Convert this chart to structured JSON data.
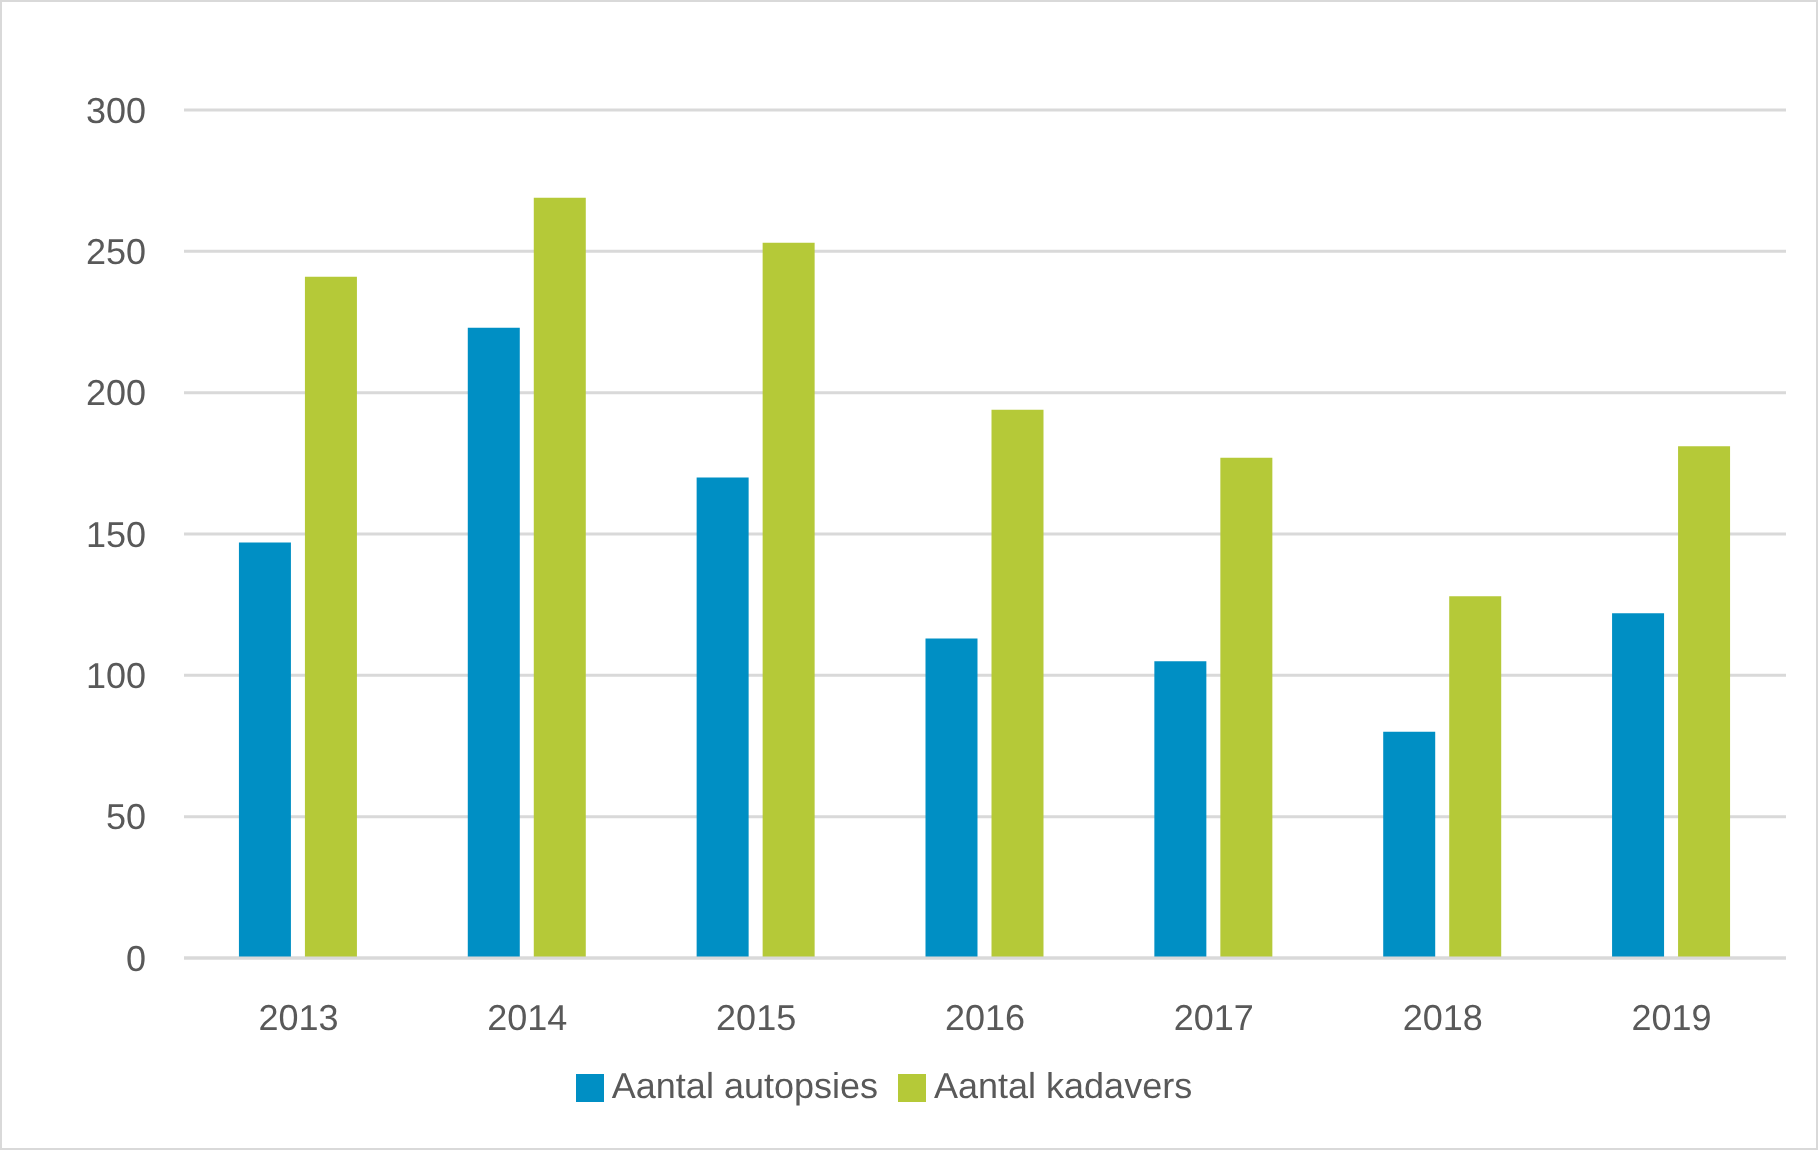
{
  "chart_data": {
    "type": "bar",
    "categories": [
      "2013",
      "2014",
      "2015",
      "2016",
      "2017",
      "2018",
      "2019"
    ],
    "series": [
      {
        "name": "Aantal autopsies",
        "color": "#008fc4",
        "values": [
          147,
          223,
          170,
          113,
          105,
          80,
          122
        ]
      },
      {
        "name": "Aantal kadavers",
        "color": "#b5c938",
        "values": [
          241,
          269,
          253,
          194,
          177,
          128,
          181
        ]
      }
    ],
    "ylim": [
      0,
      300
    ],
    "yticks": [
      0,
      50,
      100,
      150,
      200,
      250,
      300
    ],
    "grid": "y",
    "legend": "bottom"
  }
}
